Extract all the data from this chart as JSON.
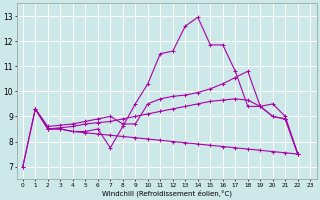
{
  "xlabel": "Windchill (Refroidissement éolien,°C)",
  "x_ticks": [
    0,
    1,
    2,
    3,
    4,
    5,
    6,
    7,
    8,
    9,
    10,
    11,
    12,
    13,
    14,
    15,
    16,
    17,
    18,
    19,
    20,
    21,
    22,
    23
  ],
  "ylim": [
    6.5,
    13.5
  ],
  "xlim": [
    -0.5,
    23.5
  ],
  "y_ticks": [
    7,
    8,
    9,
    10,
    11,
    12,
    13
  ],
  "bg_color": "#cce8e8",
  "line_color": "#aa00aa",
  "grid_color": "#ffffff",
  "line1_x": [
    0,
    1,
    2,
    3,
    4,
    5,
    6,
    7,
    8,
    9,
    10,
    11,
    12,
    13,
    14,
    15,
    16,
    17,
    18,
    19,
    20,
    21,
    22
  ],
  "line1_y": [
    7.0,
    9.3,
    8.5,
    8.5,
    8.4,
    8.4,
    8.5,
    7.75,
    8.6,
    9.5,
    10.3,
    11.5,
    11.6,
    12.6,
    12.95,
    11.85,
    11.85,
    10.8,
    9.4,
    9.4,
    9.5,
    9.0,
    7.5
  ],
  "line2_x": [
    0,
    1,
    2,
    3,
    4,
    5,
    6,
    7,
    8,
    9,
    10,
    11,
    12,
    13,
    14,
    15,
    16,
    17,
    18,
    19,
    20,
    21,
    22
  ],
  "line2_y": [
    7.0,
    9.3,
    8.5,
    8.55,
    8.6,
    8.7,
    8.75,
    8.8,
    8.9,
    9.0,
    9.1,
    9.2,
    9.3,
    9.4,
    9.5,
    9.6,
    9.65,
    9.7,
    9.65,
    9.4,
    9.0,
    8.9,
    7.5
  ],
  "line3_x": [
    1,
    2,
    3,
    4,
    5,
    6,
    7,
    8,
    9,
    10,
    11,
    12,
    13,
    14,
    15,
    16,
    17,
    18,
    19,
    20,
    21,
    22
  ],
  "line3_y": [
    9.3,
    8.5,
    8.5,
    8.4,
    8.35,
    8.3,
    8.25,
    8.2,
    8.15,
    8.1,
    8.05,
    8.0,
    7.95,
    7.9,
    7.85,
    7.8,
    7.75,
    7.7,
    7.65,
    7.6,
    7.55,
    7.5
  ],
  "line4_x": [
    1,
    2,
    3,
    4,
    5,
    6,
    7,
    8,
    9,
    10,
    11,
    12,
    13,
    14,
    15,
    16,
    17,
    18,
    19,
    20,
    21,
    22
  ],
  "line4_y": [
    9.3,
    8.6,
    8.65,
    8.7,
    8.8,
    8.9,
    9.0,
    8.7,
    8.7,
    9.5,
    9.7,
    9.8,
    9.85,
    9.95,
    10.1,
    10.3,
    10.55,
    10.8,
    9.4,
    9.0,
    8.9,
    7.5
  ]
}
